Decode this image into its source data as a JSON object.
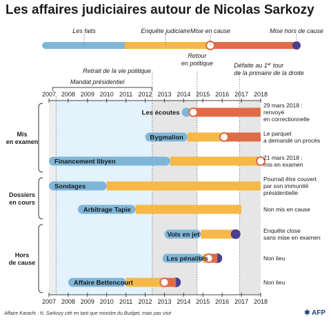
{
  "title": "Les affaires judiciaires autour de Nicolas Sarkozy",
  "legend": {
    "les_faits": "Les faits",
    "enquete_judiciaire": "Enquête judiciaire",
    "mise_en_cause": "Mise en cause",
    "mise_hors_de_cause": "Mise hors de cause"
  },
  "annotations": {
    "mandat": "Mandat présidentiel",
    "retrait": "Retrait de la vie politique",
    "retour_line1": "Retour",
    "retour_line2": "en politique",
    "defaite_line1": "Défaite au 1",
    "defaite_sup": "er",
    "defaite_line1_end": " tour",
    "defaite_line2": "de la primaire de la droite"
  },
  "footer": "Affaire Karachi : N. Sarkozy cité en tant que ministre du Budget, mais pas visé",
  "source": "AFP",
  "colors": {
    "faits": "#7fb6d8",
    "enquete": "#f6b847",
    "mise_en_cause": "#e06b47",
    "hors_de_cause": "#4a3f8f",
    "mandat_band": "#e3f2fb",
    "grey_band": "#e6e6e6"
  },
  "chart_data": {
    "type": "timeline",
    "x_axis": {
      "min": 2007,
      "max": 2018,
      "ticks": [
        2007,
        2008,
        2009,
        2010,
        2011,
        2012,
        2013,
        2014,
        2015,
        2016,
        2017,
        2018
      ]
    },
    "periods": {
      "mandat_presidentiel": [
        2007.37,
        2012.37
      ],
      "retrait": 2012.37,
      "retour": 2014.7,
      "defaite": 2016.9
    },
    "legend_bar": {
      "faits": [
        2007,
        2011.3
      ],
      "enquete": [
        2011.3,
        2015.5
      ],
      "mise_en_cause": [
        2015.5,
        2018.2
      ],
      "hors_de_cause": 2018.2
    },
    "groups": [
      {
        "label_line1": "Mis",
        "label_line2": "en examen",
        "rows": [
          0,
          1,
          2
        ]
      },
      {
        "label_line1": "Dossiers",
        "label_line2": "en cours",
        "rows": [
          3,
          4
        ]
      },
      {
        "label_line1": "Hors",
        "label_line2": "de cause",
        "rows": [
          5,
          6,
          7
        ]
      }
    ],
    "affairs": [
      {
        "name": "Les écoutes",
        "faits": [
          2013.9,
          2014.4
        ],
        "enquete": null,
        "mise_en_cause_at": 2014.5,
        "mise_en_cause_to": 2018.0,
        "hors_de_cause_at": null,
        "note": [
          "29 mars 2018 :",
          "renvoyé",
          "en correctionnelle"
        ]
      },
      {
        "name": "Bygmalion",
        "faits": [
          2012.0,
          2014.2
        ],
        "enquete": [
          2014.2,
          2016.1
        ],
        "mise_en_cause_at": 2016.1,
        "mise_en_cause_to": 2018.0,
        "hors_de_cause_at": null,
        "note": [
          "Le parquet",
          "a demandé un procès"
        ]
      },
      {
        "name": "Financement libyen",
        "faits": [
          2007.0,
          2013.3
        ],
        "enquete": [
          2013.3,
          2018.0
        ],
        "mise_en_cause_at": 2018.0,
        "mise_en_cause_to": null,
        "hors_de_cause_at": null,
        "note": [
          "21 mars 2018 :",
          "mis en examen"
        ]
      },
      {
        "name": "Sondages",
        "faits": [
          2007.0,
          2010.0
        ],
        "enquete": [
          2010.0,
          2018.0
        ],
        "mise_en_cause_at": null,
        "mise_en_cause_to": null,
        "hors_de_cause_at": null,
        "note": [
          "Pourrait être couvert",
          "par son immunité",
          "présidentielle"
        ]
      },
      {
        "name": "Arbitrage Tapie",
        "faits": [
          2008.5,
          2011.5
        ],
        "enquete": [
          2011.5,
          2017.0
        ],
        "mise_en_cause_at": null,
        "mise_en_cause_to": null,
        "hors_de_cause_at": null,
        "note": [
          "Non mis en cause"
        ]
      },
      {
        "name": "Vols en jet",
        "faits": [
          2013.0,
          2014.9
        ],
        "enquete": [
          2014.9,
          2016.7
        ],
        "mise_en_cause_at": null,
        "mise_en_cause_to": null,
        "hors_de_cause_at": 2016.7,
        "note": [
          "Enquête close",
          "sans mise en examen"
        ]
      },
      {
        "name": "Les pénalités",
        "faits": [
          2012.9,
          2015.0
        ],
        "enquete": [
          2015.0,
          2015.3
        ],
        "mise_en_cause_at": 2015.3,
        "mise_en_cause_to": null,
        "hors_de_cause_at": 2015.75,
        "note": [
          "Non lieu"
        ]
      },
      {
        "name": "Affaire Bettencourt",
        "faits": [
          2008.0,
          2011.0
        ],
        "enquete": [
          2011.0,
          2013.0
        ],
        "mise_en_cause_at": 2013.0,
        "mise_en_cause_to": null,
        "hors_de_cause_at": 2013.6,
        "note": [
          "Non lieu"
        ]
      }
    ]
  }
}
